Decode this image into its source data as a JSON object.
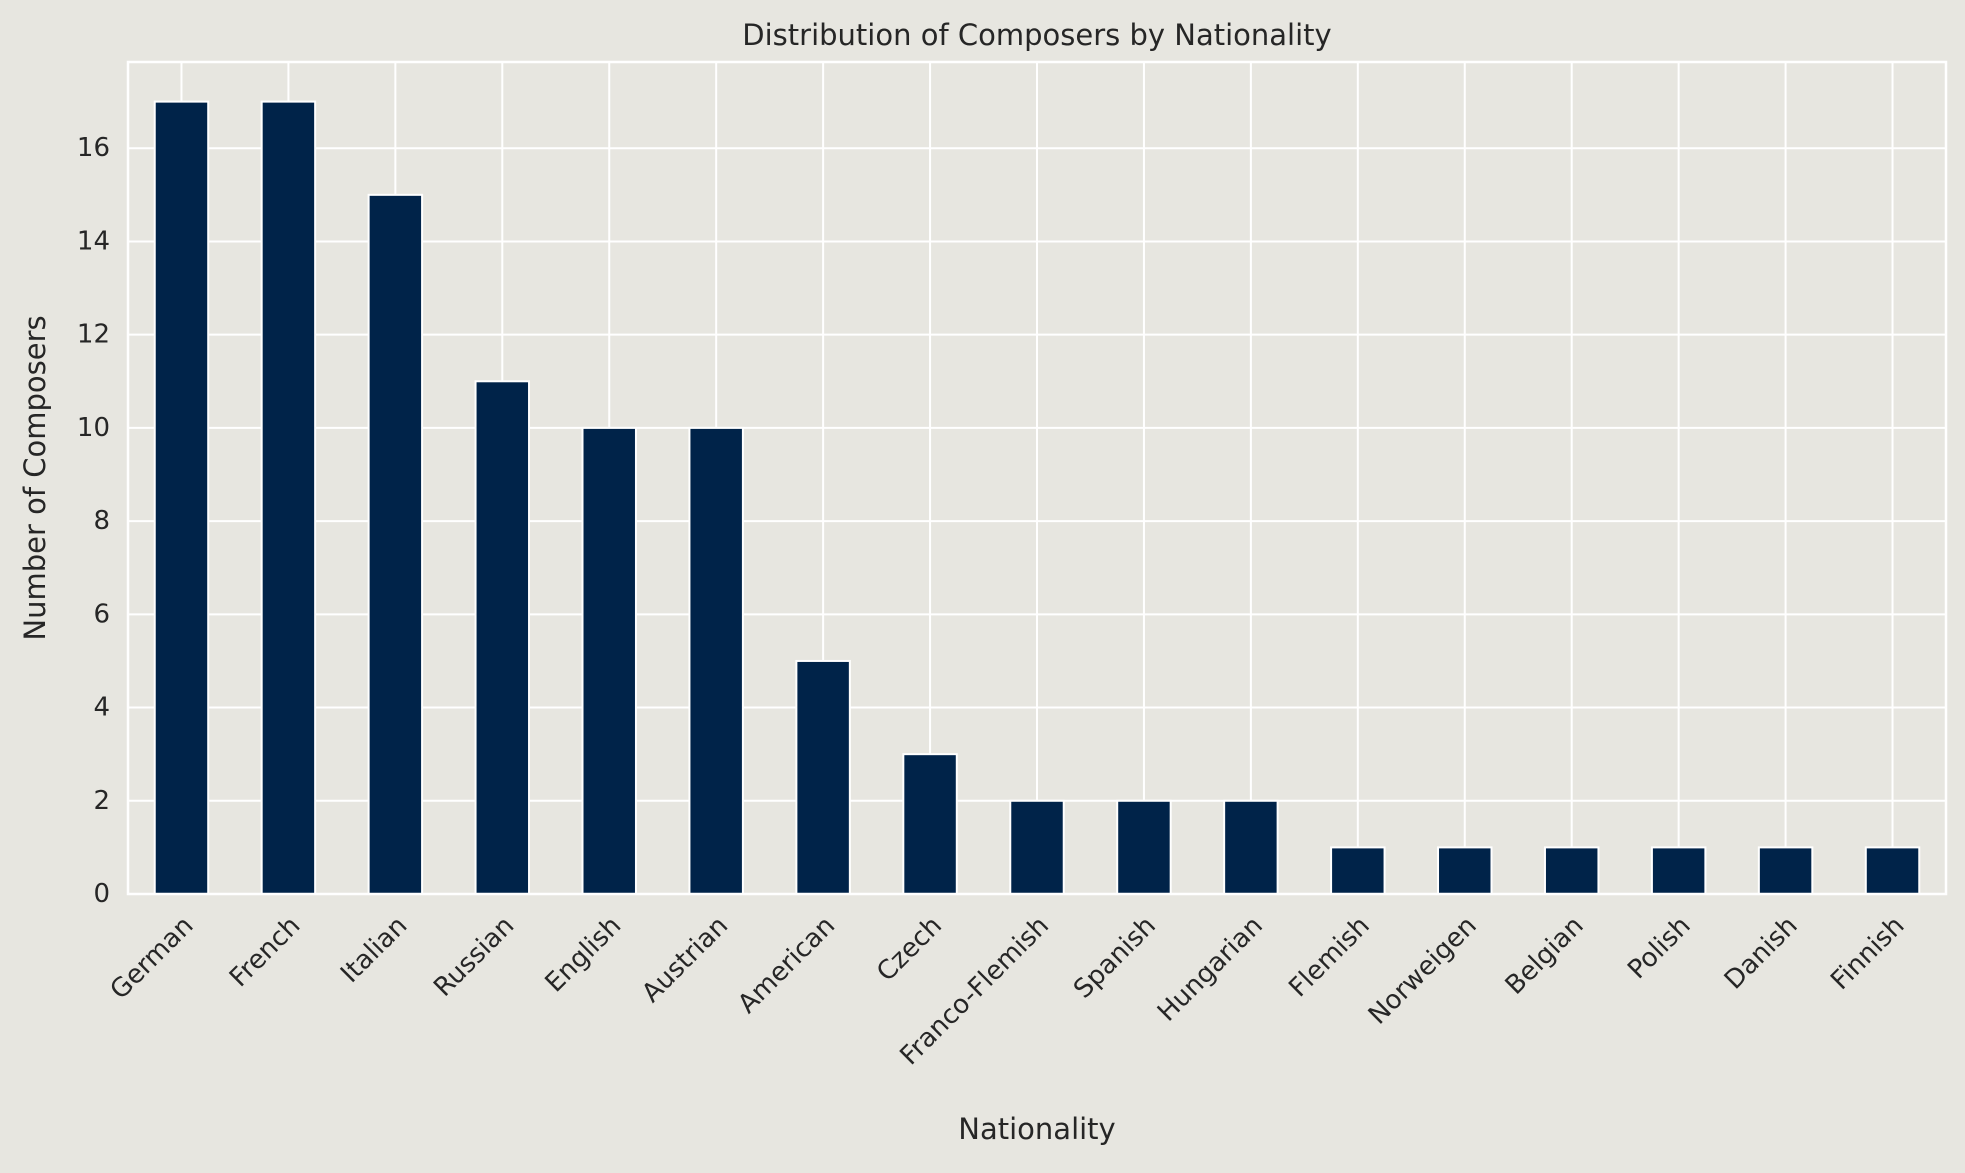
{
  "chart_data": {
    "type": "bar",
    "title": "Distribution of Composers by Nationality",
    "xlabel": "Nationality",
    "ylabel": "Number of Composers",
    "categories": [
      "German",
      "French",
      "Italian",
      "Russian",
      "English",
      "Austrian",
      "American",
      "Czech",
      "Franco-Flemish",
      "Spanish",
      "Hungarian",
      "Flemish",
      "Norweigen",
      "Belgian",
      "Polish",
      "Danish",
      "Finnish"
    ],
    "values": [
      17,
      17,
      15,
      11,
      10,
      10,
      5,
      3,
      2,
      2,
      2,
      1,
      1,
      1,
      1,
      1,
      1
    ],
    "ylim": [
      0,
      17.85
    ],
    "yticks": [
      0,
      2,
      4,
      6,
      8,
      10,
      12,
      14,
      16
    ],
    "grid": true,
    "bar_color": "#002349",
    "background_color": "#e7e6e0",
    "grid_color": "#ffffff"
  }
}
